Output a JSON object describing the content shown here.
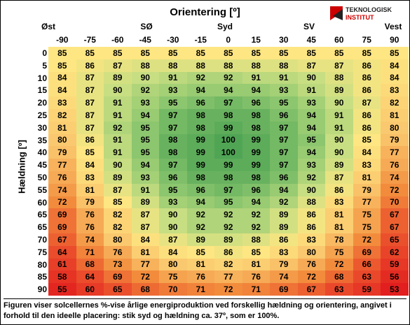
{
  "header": {
    "title": "Orientering [º]",
    "logo": [
      "TEKNOLOGISK",
      "INSTITUT"
    ]
  },
  "directions": [
    "Øst",
    "SØ",
    "Syd",
    "SV",
    "Vest"
  ],
  "y_label": "Hældning [º]",
  "table": {
    "columns": [
      -90,
      -75,
      -60,
      -45,
      -30,
      -15,
      0,
      15,
      30,
      45,
      60,
      75,
      90
    ],
    "row_labels": [
      0,
      5,
      10,
      15,
      20,
      25,
      30,
      35,
      40,
      45,
      50,
      55,
      60,
      65,
      65,
      70,
      75,
      80,
      85,
      90
    ],
    "rows": [
      [
        85,
        85,
        85,
        85,
        85,
        85,
        85,
        85,
        85,
        85,
        85,
        85,
        85
      ],
      [
        85,
        86,
        87,
        88,
        88,
        88,
        88,
        88,
        88,
        87,
        87,
        86,
        84
      ],
      [
        84,
        87,
        89,
        90,
        91,
        92,
        92,
        91,
        91,
        90,
        88,
        86,
        84
      ],
      [
        84,
        87,
        90,
        92,
        93,
        94,
        94,
        94,
        93,
        91,
        89,
        86,
        83
      ],
      [
        83,
        87,
        91,
        93,
        95,
        96,
        97,
        96,
        95,
        93,
        90,
        87,
        82
      ],
      [
        82,
        87,
        91,
        94,
        97,
        98,
        98,
        98,
        96,
        94,
        91,
        86,
        81
      ],
      [
        81,
        87,
        92,
        95,
        97,
        98,
        99,
        98,
        97,
        94,
        91,
        86,
        80
      ],
      [
        80,
        86,
        91,
        95,
        98,
        99,
        100,
        99,
        97,
        95,
        90,
        85,
        79
      ],
      [
        79,
        85,
        91,
        95,
        98,
        99,
        100,
        99,
        97,
        94,
        90,
        84,
        77
      ],
      [
        77,
        84,
        90,
        94,
        97,
        99,
        99,
        99,
        97,
        93,
        89,
        83,
        76
      ],
      [
        76,
        83,
        89,
        93,
        96,
        98,
        98,
        98,
        96,
        92,
        87,
        81,
        74
      ],
      [
        74,
        81,
        87,
        91,
        95,
        96,
        97,
        96,
        94,
        90,
        86,
        79,
        72
      ],
      [
        72,
        79,
        85,
        89,
        93,
        94,
        95,
        94,
        92,
        88,
        83,
        77,
        70
      ],
      [
        69,
        76,
        82,
        87,
        90,
        92,
        92,
        92,
        89,
        86,
        81,
        75,
        67
      ],
      [
        69,
        76,
        82,
        87,
        90,
        92,
        92,
        92,
        89,
        86,
        81,
        75,
        67
      ],
      [
        67,
        74,
        80,
        84,
        87,
        89,
        89,
        88,
        86,
        83,
        78,
        72,
        65
      ],
      [
        64,
        71,
        76,
        81,
        84,
        85,
        86,
        85,
        83,
        80,
        75,
        69,
        62
      ],
      [
        61,
        68,
        73,
        77,
        80,
        81,
        82,
        81,
        79,
        76,
        72,
        66,
        59
      ],
      [
        58,
        64,
        69,
        72,
        75,
        76,
        77,
        76,
        74,
        72,
        68,
        63,
        56
      ],
      [
        55,
        60,
        65,
        68,
        70,
        71,
        72,
        71,
        69,
        67,
        63,
        59,
        53
      ]
    ]
  },
  "caption": "Figuren viser solcellernes %-vise årlige energiproduktion ved forskellig hældning og orientering, angivet i forhold til den ideelle placering: stik syd og hældning ca. 37º, som er 100%."
}
